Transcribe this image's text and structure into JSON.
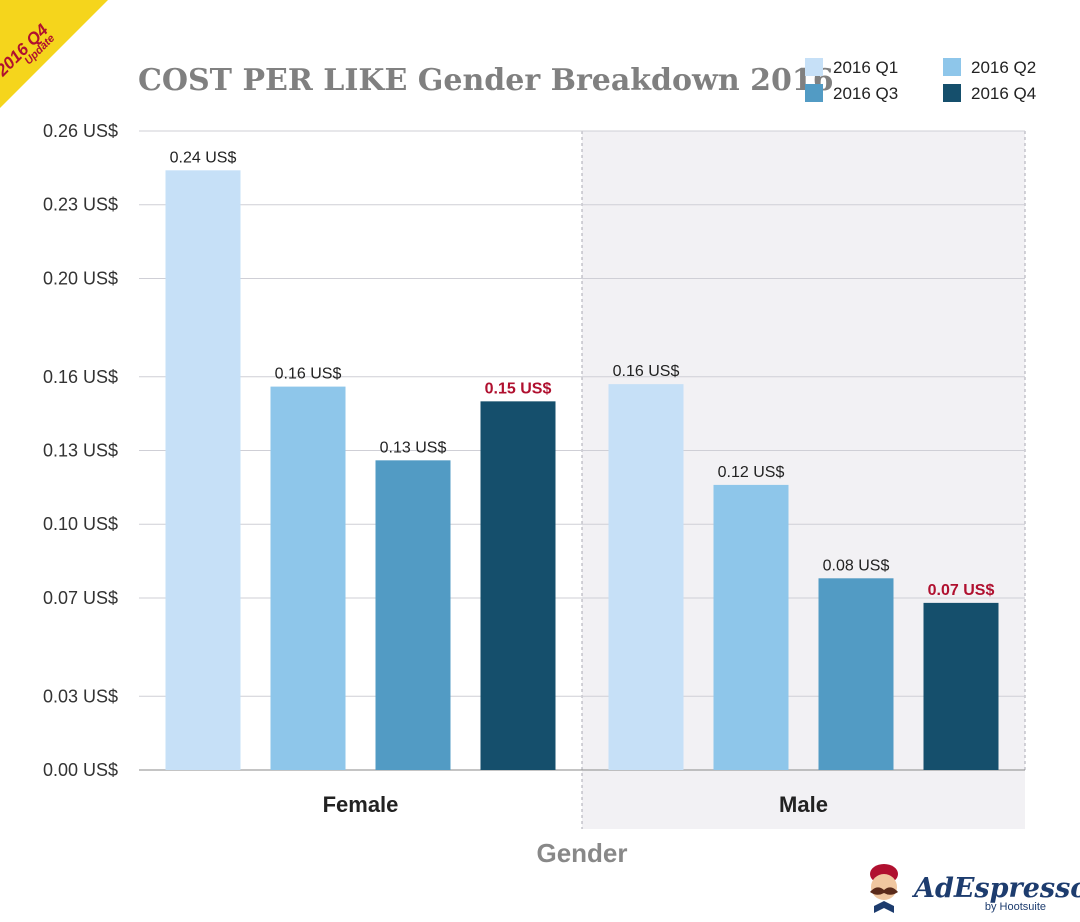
{
  "badge": {
    "line1": "2016 Q4",
    "line2": "Update",
    "color": "#f5d51c"
  },
  "brand": {
    "name": "AdEspresso",
    "sub": "by Hootsuite"
  },
  "chart_data": {
    "type": "bar",
    "title": "COST PER LIKE Gender Breakdown 2016",
    "xlabel": "Gender",
    "ylabel": "",
    "ylim": [
      0,
      0.26
    ],
    "yticks": [
      0.0,
      0.03,
      0.07,
      0.1,
      0.13,
      0.16,
      0.2,
      0.23,
      0.26
    ],
    "ytick_labels": [
      "0.00 US$",
      "0.03 US$",
      "0.07 US$",
      "0.10 US$",
      "0.13 US$",
      "0.16 US$",
      "0.20 US$",
      "0.23 US$",
      "0.26 US$"
    ],
    "categories": [
      "Female",
      "Male"
    ],
    "grid": true,
    "legend_position": "top-right",
    "series": [
      {
        "name": "2016 Q1",
        "color": "#c6e0f7",
        "values": [
          0.244,
          0.157
        ],
        "labels": [
          "0.24 US$",
          "0.16 US$"
        ]
      },
      {
        "name": "2016 Q2",
        "color": "#8ec6ea",
        "values": [
          0.156,
          0.116
        ],
        "labels": [
          "0.16 US$",
          "0.12 US$"
        ]
      },
      {
        "name": "2016 Q3",
        "color": "#529bc4",
        "values": [
          0.126,
          0.078
        ],
        "labels": [
          "0.13 US$",
          "0.08 US$"
        ]
      },
      {
        "name": "2016 Q4",
        "color": "#154f6c",
        "values": [
          0.15,
          0.068
        ],
        "labels": [
          "0.15 US$",
          "0.07 US$"
        ],
        "highlight": true
      }
    ],
    "highlight_color": "#b0102f"
  }
}
